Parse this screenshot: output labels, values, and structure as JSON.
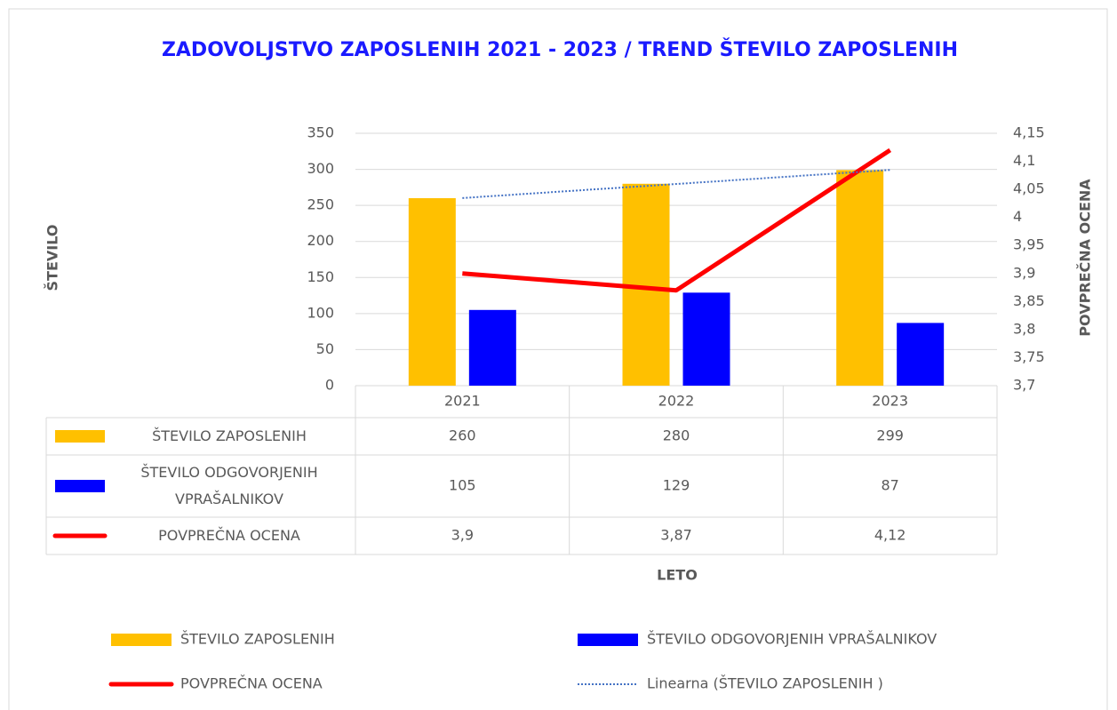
{
  "chart_data": {
    "type": "bar",
    "title": "ZADOVOLJSTVO ZAPOSLENIH 2021 - 2023  / TREND ŠTEVILO ZAPOSLENIH",
    "y_label": "ŠTEVILO",
    "y2_label": "POVPREČNA OCENA",
    "x_label": "LETO",
    "categories": [
      "2021",
      "2022",
      "2023"
    ],
    "series": [
      {
        "name": "ŠTEVILO ZAPOSLENIH",
        "color": "#ffc000",
        "type": "bar",
        "values": [
          260,
          280,
          299
        ]
      },
      {
        "name": "ŠTEVILO ODGOVORJENIH VPRAŠALNIKOV",
        "color": "#0000ff",
        "type": "bar",
        "values": [
          105,
          129,
          87
        ]
      },
      {
        "name": "POVPREČNA OCENA",
        "color": "#ff0000",
        "type": "line",
        "axis": "y2",
        "values": [
          3.9,
          3.87,
          4.12
        ],
        "value_labels": [
          "3,9",
          "3,87",
          "4,12"
        ]
      },
      {
        "name": "Linearna (ŠTEVILO ZAPOSLENIH )",
        "color": "#4472c4",
        "type": "trend",
        "values": [
          260.2,
          279.7,
          299.2
        ]
      }
    ],
    "ylim": [
      0,
      350
    ],
    "yticks": [
      0,
      50,
      100,
      150,
      200,
      250,
      300,
      350
    ],
    "y2lim": [
      3.7,
      4.15
    ],
    "y2ticks": [
      {
        "value": 3.7,
        "label": "3,7"
      },
      {
        "value": 3.75,
        "label": "3,75"
      },
      {
        "value": 3.8,
        "label": "3,8"
      },
      {
        "value": 3.85,
        "label": "3,85"
      },
      {
        "value": 3.9,
        "label": "3,9"
      },
      {
        "value": 3.95,
        "label": "3,95"
      },
      4,
      {
        "value": 4.05,
        "label": "4,05"
      },
      {
        "value": 4.1,
        "label": "4,1"
      },
      {
        "value": 4.15,
        "label": "4,15"
      }
    ],
    "grid": true,
    "data_table": true,
    "legend": "bottom"
  }
}
